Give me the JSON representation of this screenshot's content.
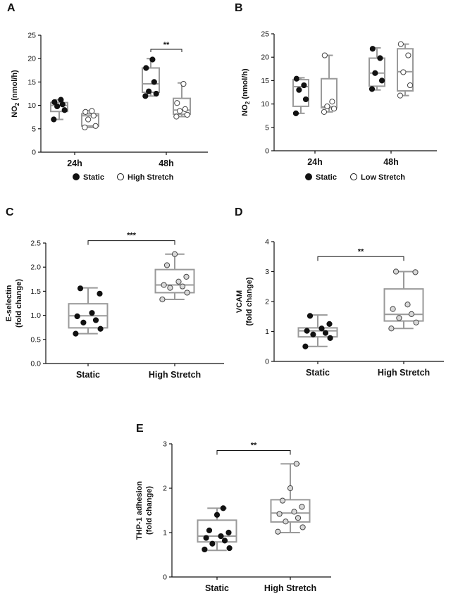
{
  "chart_data": [
    {
      "panel": "A",
      "type": "box",
      "ylabel_main": "NO",
      "ylabel_sub": "2",
      "ylabel_unit": " (nmol/h)",
      "ylim": [
        0,
        25
      ],
      "yticks": [
        0,
        5,
        10,
        15,
        20,
        25
      ],
      "categories": [
        "24h",
        "48h"
      ],
      "series": [
        {
          "name": "Static",
          "fill": "#111111",
          "groups": [
            {
              "whisker": [
                7.0,
                11.2
              ],
              "box": [
                8.7,
                10.6
              ],
              "median": 10.0,
              "points": [
                7.0,
                9.0,
                9.8,
                10.2,
                10.7,
                11.2
              ]
            },
            {
              "whisker": [
                12.0,
                20.0
              ],
              "box": [
                12.8,
                18.0
              ],
              "median": 14.6,
              "points": [
                12.0,
                12.5,
                13.0,
                15.0,
                18.0,
                19.8
              ]
            }
          ]
        },
        {
          "name": "High Stretch",
          "fill": "#ffffff",
          "groups": [
            {
              "whisker": [
                5.3,
                8.9
              ],
              "box": [
                5.6,
                8.2
              ],
              "median": 7.8,
              "points": [
                5.3,
                5.6,
                7.0,
                7.8,
                8.6,
                8.8
              ]
            },
            {
              "whisker": [
                7.6,
                14.8
              ],
              "box": [
                8.1,
                11.5
              ],
              "median": 9.0,
              "points": [
                7.6,
                8.0,
                8.8,
                9.2,
                10.5,
                14.6
              ]
            }
          ]
        }
      ],
      "annotation": {
        "label": "**",
        "category": 1
      },
      "legend": [
        "Static",
        "High Stretch"
      ]
    },
    {
      "panel": "B",
      "type": "box",
      "ylabel_main": "NO",
      "ylabel_sub": "2",
      "ylabel_unit": " (nmol/h)",
      "ylim": [
        0,
        25
      ],
      "yticks": [
        0,
        5,
        10,
        15,
        20,
        25
      ],
      "categories": [
        "24h",
        "48h"
      ],
      "series": [
        {
          "name": "Static",
          "fill": "#111111",
          "groups": [
            {
              "whisker": [
                8.0,
                15.6
              ],
              "box": [
                9.5,
                15.2
              ],
              "median": 13.7,
              "points": [
                8.0,
                11.0,
                13.0,
                14.0,
                15.4
              ]
            },
            {
              "whisker": [
                13.0,
                22.0
              ],
              "box": [
                13.8,
                19.8
              ],
              "median": 16.6,
              "points": [
                13.2,
                15.0,
                16.6,
                19.8,
                21.8
              ]
            }
          ]
        },
        {
          "name": "Low Stretch",
          "fill": "#ffffff",
          "groups": [
            {
              "whisker": [
                8.3,
                20.4
              ],
              "box": [
                9.2,
                15.4
              ],
              "median": 9.4,
              "points": [
                8.3,
                9.0,
                9.5,
                10.5,
                20.4
              ]
            },
            {
              "whisker": [
                11.8,
                22.8
              ],
              "box": [
                12.8,
                21.8
              ],
              "median": 16.9,
              "points": [
                11.8,
                14.0,
                16.8,
                20.4,
                22.8
              ]
            }
          ]
        }
      ],
      "legend": [
        "Static",
        "Low Stretch"
      ]
    },
    {
      "panel": "C",
      "type": "box",
      "ylabel_lines": [
        "E-selectin",
        "(fold change)"
      ],
      "ylim": [
        0,
        2.5
      ],
      "yticks": [
        0.0,
        0.5,
        1.0,
        1.5,
        2.0,
        2.5
      ],
      "ytick_decimals": 1,
      "categories": [
        "Static",
        "High Stretch"
      ],
      "groups": [
        {
          "fill": "#111111",
          "whisker": [
            0.62,
            1.57
          ],
          "box": [
            0.74,
            1.24
          ],
          "median": 0.99,
          "points": [
            0.62,
            0.72,
            0.85,
            0.9,
            0.98,
            1.05,
            1.45,
            1.56
          ]
        },
        {
          "fill": "#d8d8d8",
          "whisker": [
            1.33,
            2.27
          ],
          "box": [
            1.47,
            1.95
          ],
          "median": 1.63,
          "points": [
            1.33,
            1.47,
            1.57,
            1.6,
            1.63,
            1.7,
            1.8,
            2.04,
            2.27
          ]
        }
      ],
      "annotation": {
        "label": "***",
        "from": 0,
        "to": 1,
        "y": 2.55
      }
    },
    {
      "panel": "D",
      "type": "box",
      "ylabel_lines": [
        "VCAM",
        "(fold change)"
      ],
      "ylim": [
        0,
        4
      ],
      "yticks": [
        0,
        1,
        2,
        3,
        4
      ],
      "ytick_decimals": 0,
      "categories": [
        "Static",
        "High Stretch"
      ],
      "groups": [
        {
          "fill": "#111111",
          "whisker": [
            0.5,
            1.55
          ],
          "box": [
            0.82,
            1.12
          ],
          "median": 1.02,
          "points": [
            0.5,
            0.78,
            0.9,
            0.95,
            1.02,
            1.1,
            1.25,
            1.52
          ]
        },
        {
          "fill": "#d8d8d8",
          "whisker": [
            1.1,
            3.0
          ],
          "box": [
            1.35,
            2.42
          ],
          "median": 1.57,
          "points": [
            1.1,
            1.3,
            1.45,
            1.58,
            1.75,
            1.9,
            2.98,
            3.0
          ]
        }
      ],
      "annotation": {
        "label": "**",
        "from": 0,
        "to": 1,
        "y": 3.5
      }
    },
    {
      "panel": "E",
      "type": "box",
      "ylabel_lines": [
        "THP-1 adhesion",
        "(fold change)"
      ],
      "ylim": [
        0,
        3
      ],
      "yticks": [
        0,
        1,
        2,
        3
      ],
      "ytick_decimals": 0,
      "categories": [
        "Static",
        "High Stretch"
      ],
      "groups": [
        {
          "fill": "#111111",
          "whisker": [
            0.6,
            1.55
          ],
          "box": [
            0.79,
            1.28
          ],
          "median": 0.92,
          "points": [
            0.62,
            0.65,
            0.75,
            0.82,
            0.88,
            0.92,
            1.0,
            1.05,
            1.4,
            1.55
          ]
        },
        {
          "fill": "#d8d8d8",
          "whisker": [
            1.0,
            2.55
          ],
          "box": [
            1.24,
            1.74
          ],
          "median": 1.44,
          "points": [
            1.02,
            1.12,
            1.25,
            1.33,
            1.42,
            1.47,
            1.58,
            1.72,
            2.0,
            2.55
          ]
        }
      ],
      "annotation": {
        "label": "**",
        "from": 0,
        "to": 1,
        "y": 2.85
      }
    }
  ]
}
